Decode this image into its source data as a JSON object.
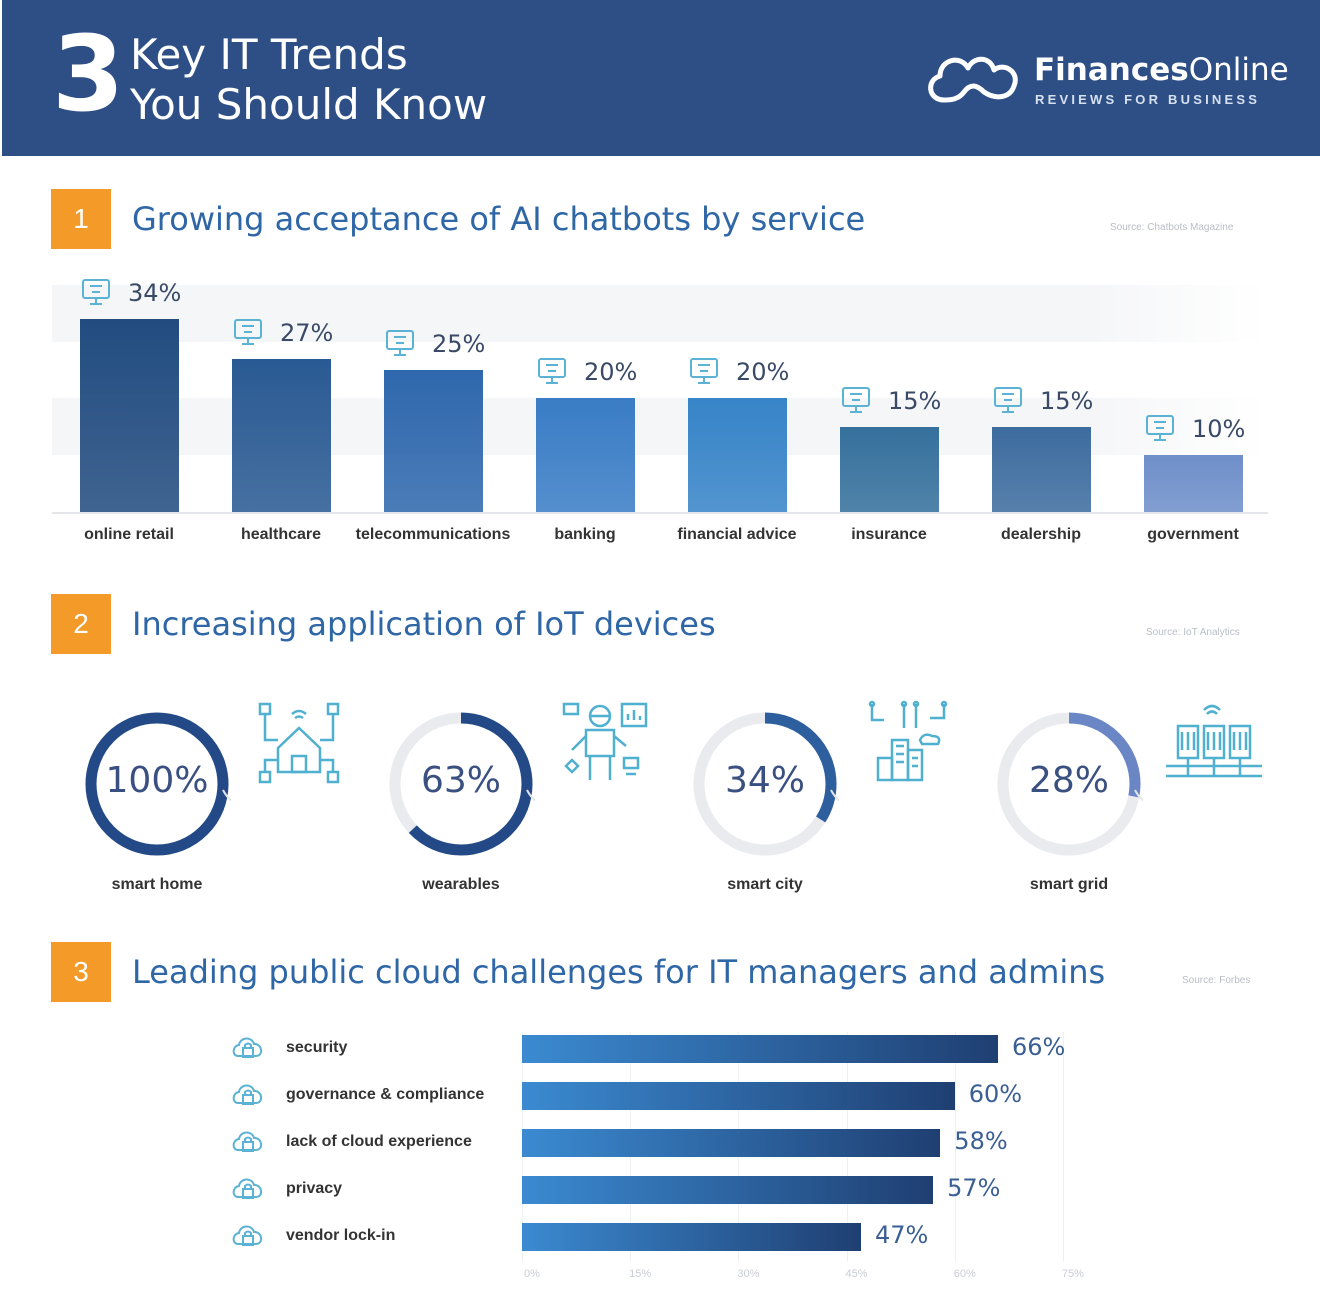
{
  "header": {
    "number": "3",
    "title_line1": "Key IT Trends",
    "title_line2": "You Should Know",
    "brand_bold": "Finances",
    "brand_regular": "Online",
    "tagline": "REVIEWS FOR BUSINESS"
  },
  "colors": {
    "header_bg": "#2d4f86",
    "accent": "#f39a29",
    "title": "#2e66a6"
  },
  "section1": {
    "number": "1",
    "title": "Growing acceptance of AI chatbots by service",
    "source": "Source: Chatbots Magazine"
  },
  "section2": {
    "number": "2",
    "title": "Increasing application of IoT devices",
    "source": "Source: IoT Analytics"
  },
  "section3": {
    "number": "3",
    "title": "Leading public cloud challenges for IT managers and admins",
    "source": "Source: Forbes"
  },
  "chart_data": [
    {
      "type": "bar",
      "title": "Growing acceptance of AI chatbots by service",
      "categories": [
        "online retail",
        "healthcare",
        "telecommunications",
        "banking",
        "financial advice",
        "insurance",
        "dealership",
        "government"
      ],
      "values": [
        34,
        27,
        25,
        20,
        20,
        15,
        15,
        10
      ],
      "labels": [
        "34%",
        "27%",
        "25%",
        "20%",
        "20%",
        "15%",
        "15%",
        "10%"
      ],
      "icons": [
        "monitor-cart-icon",
        "chat-medical-icon",
        "phone-icon",
        "bank-icon",
        "report-icon",
        "umbrella-icon",
        "car-icon",
        "government-building-icon"
      ],
      "ylim": [
        0,
        34
      ]
    },
    {
      "type": "pie",
      "title": "Increasing application of IoT devices",
      "categories": [
        "smart home",
        "wearables",
        "smart city",
        "smart grid"
      ],
      "values": [
        100,
        63,
        34,
        28
      ],
      "labels": [
        "100%",
        "63%",
        "34%",
        "28%"
      ],
      "icons": [
        "smart-home-icon",
        "wearables-icon",
        "smart-city-icon",
        "smart-grid-icon"
      ]
    },
    {
      "type": "bar",
      "orientation": "horizontal",
      "title": "Leading public cloud challenges for IT managers and admins",
      "categories": [
        "security",
        "governance & compliance",
        "lack of cloud experience",
        "privacy",
        "vendor lock-in"
      ],
      "values": [
        66,
        60,
        58,
        57,
        47
      ],
      "labels": [
        "66%",
        "60%",
        "58%",
        "57%",
        "47%"
      ],
      "icons": [
        "cloud-lock-icon",
        "governance-icon",
        "cloud-gear-icon",
        "privacy-eye-icon",
        "vendor-lock-icon"
      ],
      "xticks": [
        "0%",
        "15%",
        "30%",
        "45%",
        "60%",
        "75%"
      ],
      "xlim": [
        0,
        75
      ]
    }
  ]
}
